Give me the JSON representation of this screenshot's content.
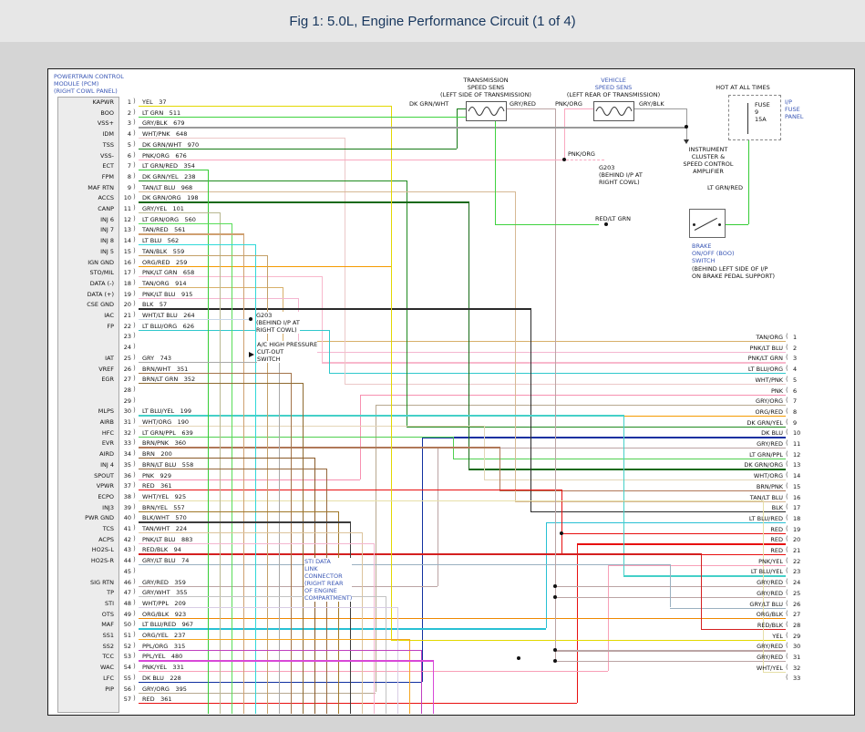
{
  "title": "Fig 1: 5.0L, Engine Performance Circuit (1 of 4)",
  "ui": {
    "label_blue": "#3a57b5",
    "title_color": "#17365d"
  },
  "colors": {
    "YEL": "#e3d800",
    "LT GRN": "#3fd23f",
    "GRY/BLK": "#9a9a9a",
    "WHT/PNK": "#ecc8c8",
    "DK GRN/WHT": "#157a15",
    "PNK/ORG": "#f9a8c0",
    "LT GRN/RED": "#35cc35",
    "DK GRN/YEL": "#1e8a1e",
    "TAN/LT BLU": "#d6b894",
    "DK GRN/ORG": "#156a15",
    "GRY/YEL": "#b8b890",
    "LT GRN/ORG": "#58dd58",
    "TAN/RED": "#cfa070",
    "LT BLU": "#2fd8d8",
    "TAN/BLK": "#c4a068",
    "ORG/RED": "#f59a00",
    "PNK/LT GRN": "#f8b8cc",
    "TAN/ORG": "#d8b06a",
    "PNK/LT BLU": "#f4b6d0",
    "BLK": "#2a2a2a",
    "WHT/LT BLU": "#c8d8e8",
    "LT BLU/ORG": "#30c8cc",
    "GRY": "#a8a8a8",
    "BRN/WHT": "#a3744a",
    "BRN/LT GRN": "#8f6a30",
    "LT BLU/YEL": "#45d0c8",
    "WHT/ORG": "#e4d6b8",
    "LT GRN/PPL": "#50d050",
    "BRN/PNK": "#b07858",
    "BRN": "#8a5a28",
    "BRN/LT BLU": "#96683c",
    "PNK": "#f790b0",
    "RED": "#e81010",
    "WHT/YEL": "#e6dfa8",
    "BRN/YEL": "#a07828",
    "BLK/WHT": "#3c3c3c",
    "TAN/WHT": "#dcc49c",
    "RED/BLK": "#d42020",
    "GRY/LT BLU": "#9ab0c0",
    "GRY/RED": "#bba4a4",
    "GRY/WHT": "#c2c2c2",
    "WHT/PPL": "#d8cce4",
    "ORG/BLK": "#ef8800",
    "LT BLU/RED": "#28c0d4",
    "ORG/YEL": "#f5a520",
    "PPL/ORG": "#c040c0",
    "PPL/YEL": "#d848d8",
    "PNK/YEL": "#f8a0b8",
    "DK BLU": "#1030a0",
    "GRY/ORG": "#b8a890"
  },
  "pcm": {
    "header": [
      "POWERTRAIN CONTROL",
      "MODULE (PCM)",
      "(RIGHT COWL PANEL)"
    ],
    "pins": [
      [
        1,
        "YEL",
        "37",
        "KAPWR"
      ],
      [
        2,
        "LT GRN",
        "511",
        "BOO"
      ],
      [
        3,
        "GRY/BLK",
        "679",
        "VSS+"
      ],
      [
        4,
        "WHT/PNK",
        "648",
        "IDM"
      ],
      [
        5,
        "DK GRN/WHT",
        "970",
        "TSS"
      ],
      [
        6,
        "PNK/ORG",
        "676",
        "VSS-"
      ],
      [
        7,
        "LT GRN/RED",
        "354",
        "ECT"
      ],
      [
        8,
        "DK GRN/YEL",
        "238",
        "FPM"
      ],
      [
        9,
        "TAN/LT BLU",
        "968",
        "MAF RTN"
      ],
      [
        10,
        "DK GRN/ORG",
        "198",
        "ACCS"
      ],
      [
        11,
        "GRY/YEL",
        "101",
        "CANP"
      ],
      [
        12,
        "LT GRN/ORG",
        "560",
        "INJ 6"
      ],
      [
        13,
        "TAN/RED",
        "561",
        "INJ 7"
      ],
      [
        14,
        "LT BLU",
        "562",
        "INJ 8"
      ],
      [
        15,
        "TAN/BLK",
        "559",
        "INJ 5"
      ],
      [
        16,
        "ORG/RED",
        "259",
        "IGN GND"
      ],
      [
        17,
        "PNK/LT GRN",
        "658",
        "STO/MIL"
      ],
      [
        18,
        "TAN/ORG",
        "914",
        "DATA (-)"
      ],
      [
        19,
        "PNK/LT BLU",
        "915",
        "DATA (+)"
      ],
      [
        20,
        "BLK",
        "57",
        "CSE GND"
      ],
      [
        21,
        "WHT/LT BLU",
        "264",
        "IAC"
      ],
      [
        22,
        "LT BLU/ORG",
        "626",
        "FP"
      ],
      [
        23,
        "",
        "",
        ""
      ],
      [
        24,
        "",
        "",
        ""
      ],
      [
        25,
        "GRY",
        "743",
        "IAT"
      ],
      [
        26,
        "BRN/WHT",
        "351",
        "VREF"
      ],
      [
        27,
        "BRN/LT GRN",
        "352",
        "EGR"
      ],
      [
        28,
        "",
        "",
        ""
      ],
      [
        29,
        "",
        "",
        ""
      ],
      [
        30,
        "LT BLU/YEL",
        "199",
        "MLPS"
      ],
      [
        31,
        "WHT/ORG",
        "190",
        "AIRB"
      ],
      [
        32,
        "LT GRN/PPL",
        "639",
        "HFC"
      ],
      [
        33,
        "BRN/PNK",
        "360",
        "EVR"
      ],
      [
        34,
        "BRN",
        "200",
        "AIRD"
      ],
      [
        35,
        "BRN/LT BLU",
        "558",
        "INJ 4"
      ],
      [
        36,
        "PNK",
        "929",
        "SPOUT"
      ],
      [
        37,
        "RED",
        "361",
        "VPWR"
      ],
      [
        38,
        "WHT/YEL",
        "925",
        "ECPO"
      ],
      [
        39,
        "BRN/YEL",
        "557",
        "INJ3"
      ],
      [
        40,
        "BLK/WHT",
        "570",
        "PWR GND"
      ],
      [
        41,
        "TAN/WHT",
        "224",
        "TCS"
      ],
      [
        42,
        "PNK/LT BLU",
        "883",
        "ACPS"
      ],
      [
        43,
        "RED/BLK",
        "94",
        "HO2S-L"
      ],
      [
        44,
        "GRY/LT BLU",
        "74",
        "HO2S-R"
      ],
      [
        45,
        "",
        "",
        ""
      ],
      [
        46,
        "GRY/RED",
        "359",
        "SIG RTN"
      ],
      [
        47,
        "GRY/WHT",
        "355",
        "TP"
      ],
      [
        48,
        "WHT/PPL",
        "209",
        "STI"
      ],
      [
        49,
        "ORG/BLK",
        "923",
        "OTS"
      ],
      [
        50,
        "LT BLU/RED",
        "967",
        "MAF"
      ],
      [
        51,
        "ORG/YEL",
        "237",
        "SS1"
      ],
      [
        52,
        "PPL/ORG",
        "315",
        "SS2"
      ],
      [
        53,
        "PPL/YEL",
        "480",
        "TCC"
      ],
      [
        54,
        "PNK/YEL",
        "331",
        "WAC"
      ],
      [
        55,
        "DK BLU",
        "228",
        "LFC"
      ],
      [
        56,
        "GRY/ORG",
        "395",
        "PIP"
      ],
      [
        57,
        "RED",
        "361",
        ""
      ]
    ]
  },
  "right_pins": [
    [
      1,
      "TAN/ORG"
    ],
    [
      2,
      "PNK/LT BLU"
    ],
    [
      3,
      "PNK/LT GRN"
    ],
    [
      4,
      "LT BLU/ORG"
    ],
    [
      5,
      "WHT/PNK"
    ],
    [
      6,
      "PNK"
    ],
    [
      7,
      "GRY/ORG"
    ],
    [
      8,
      "ORG/RED"
    ],
    [
      9,
      "DK GRN/YEL"
    ],
    [
      10,
      "DK BLU"
    ],
    [
      11,
      "GRY/RED"
    ],
    [
      12,
      "LT GRN/PPL"
    ],
    [
      13,
      "DK GRN/ORG"
    ],
    [
      14,
      "WHT/ORG"
    ],
    [
      15,
      "BRN/PNK"
    ],
    [
      16,
      "TAN/LT BLU"
    ],
    [
      17,
      "BLK"
    ],
    [
      18,
      "LT BLU/RED"
    ],
    [
      19,
      "RED"
    ],
    [
      20,
      "RED"
    ],
    [
      21,
      "RED"
    ],
    [
      22,
      "PNK/YEL"
    ],
    [
      23,
      "LT BLU/YEL"
    ],
    [
      24,
      "GRY/RED"
    ],
    [
      25,
      "GRY/RED"
    ],
    [
      26,
      "GRY/LT BLU"
    ],
    [
      27,
      "ORG/BLK"
    ],
    [
      28,
      "RED/BLK"
    ],
    [
      29,
      "YEL"
    ],
    [
      30,
      "GRY/RED"
    ],
    [
      31,
      "GRY/RED"
    ],
    [
      32,
      "WHT/YEL"
    ],
    [
      33,
      ""
    ]
  ],
  "top": {
    "hot": "HOT AT ALL TIMES",
    "trans_title": [
      "TRANSMISSION",
      "SPEED SENS",
      "(LEFT SIDE OF TRANSMISSION)"
    ],
    "trans_left_wire": "DK GRN/WHT",
    "trans_right_wire": "GRY/RED",
    "veh_title": [
      "VEHICLE",
      "SPEED SENS",
      "(LEFT REAR OF TRANSMISSION)"
    ],
    "veh_left_wire": "PNK/ORG",
    "veh_right_wire": "GRY/BLK",
    "fuse": [
      "FUSE",
      "9",
      "15A"
    ],
    "fuse_panel": [
      "I/P",
      "FUSE",
      "PANEL"
    ],
    "cluster": [
      "INSTRUMENT",
      "CLUSTER &",
      "SPEED CONTROL",
      "AMPLIFIER"
    ],
    "pnk_org_label": "PNK/ORG",
    "g203": [
      "G203",
      "(BEHIND I/P AT",
      "RIGHT COWL)"
    ],
    "lt_grn_red_label": "LT GRN/RED",
    "red_lt_grn_label": "RED/LT GRN",
    "brake_blue": [
      "BRAKE",
      "ON/OFF (BOO)",
      "SWITCH"
    ],
    "brake_black": [
      "(BEHIND LEFT SIDE OF I/P",
      "ON BRAKE PEDAL SUPPORT)"
    ]
  },
  "mid": {
    "g203": [
      "G203",
      "(BEHIND I/P AT",
      "RIGHT COWL)"
    ],
    "ac": [
      "A/C HIGH PRESSURE",
      "CUT-OUT",
      "SWITCH"
    ],
    "sti": [
      "STI DATA",
      "LINK",
      "CONNECTOR",
      "(RIGHT REAR",
      "OF ENGINE",
      "COMPARTMENT)"
    ]
  }
}
